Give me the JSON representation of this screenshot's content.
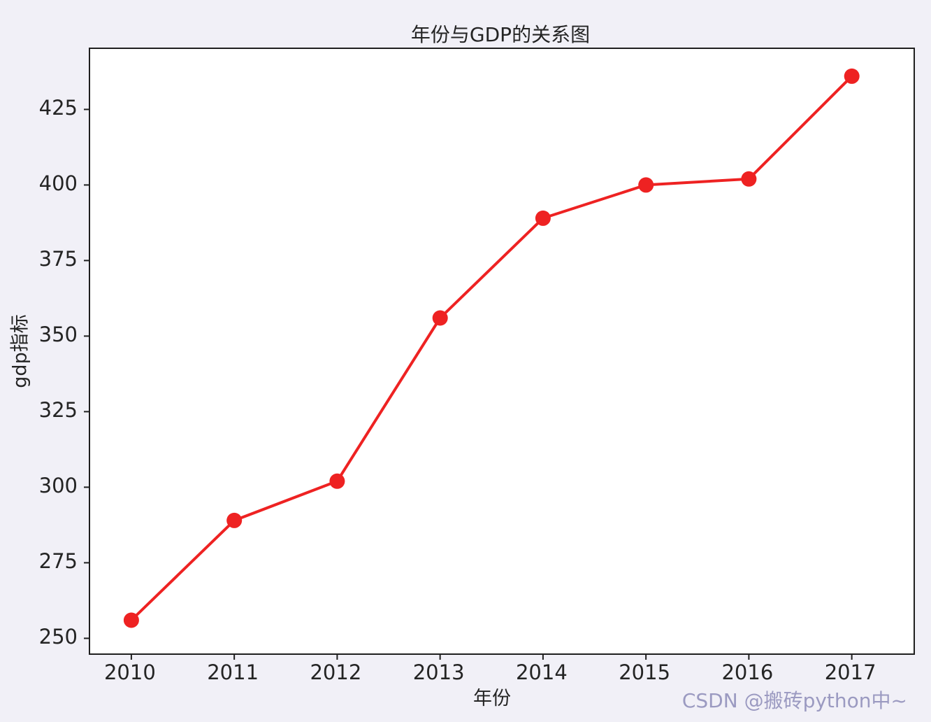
{
  "page": {
    "background": "#f1f0f7"
  },
  "chart_data": {
    "type": "line",
    "title": "年份与GDP的关系图",
    "xlabel": "年份",
    "ylabel": "gdp指标",
    "x": [
      2010,
      2011,
      2012,
      2013,
      2014,
      2015,
      2016,
      2017
    ],
    "series": [
      {
        "name": "gdp",
        "values": [
          256,
          289,
          302,
          356,
          389,
          400,
          402,
          436
        ]
      }
    ],
    "xticks": [
      "2010",
      "2011",
      "2012",
      "2013",
      "2014",
      "2015",
      "2016",
      "2017"
    ],
    "yticks": [
      250,
      275,
      300,
      325,
      350,
      375,
      400,
      425
    ],
    "xlim": [
      2009.6,
      2017.6
    ],
    "ylim": [
      245,
      445
    ],
    "grid": false,
    "legend_position": "none",
    "line_color": "#ee2222",
    "marker": "circle",
    "marker_size": 11,
    "axes_background": "#ffffff",
    "spine_color": "#1f1f1f"
  },
  "watermark": {
    "text": "CSDN @搬砖python中~",
    "color": "#9b9ac1"
  }
}
